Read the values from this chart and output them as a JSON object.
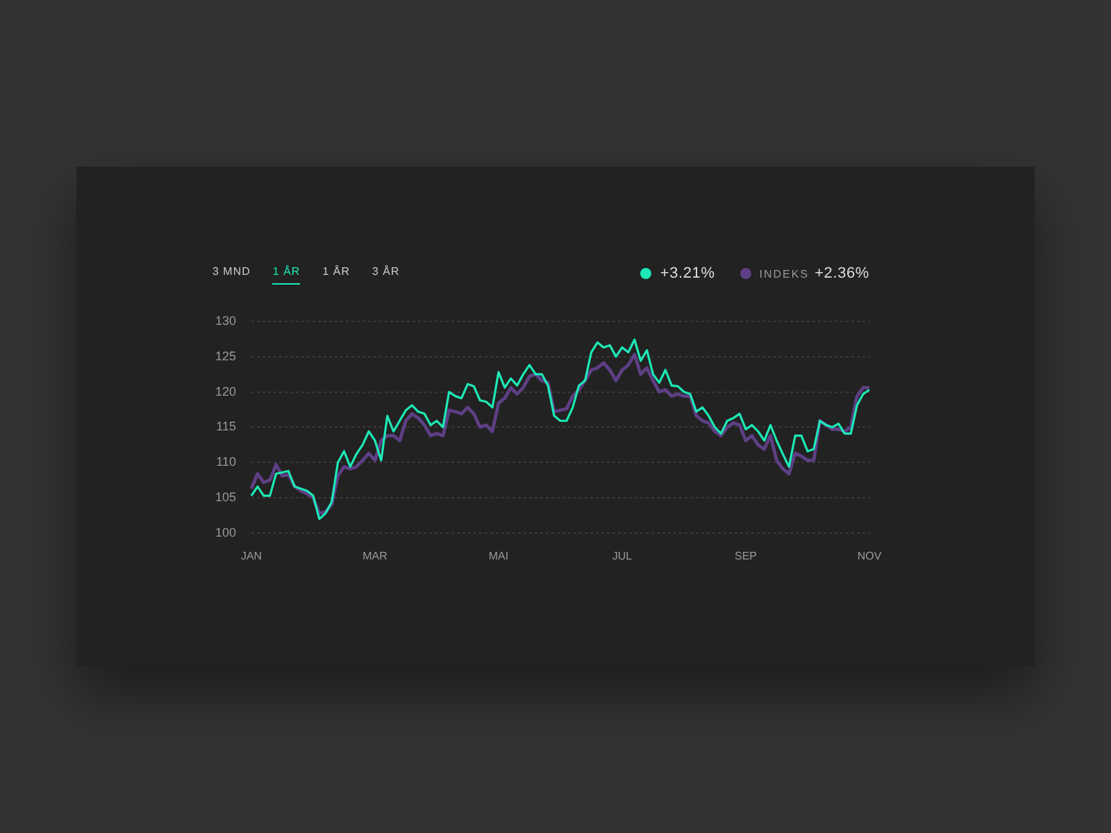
{
  "chart_data": {
    "type": "line",
    "categories": [
      "JAN",
      null,
      null,
      null,
      null,
      null,
      null,
      null,
      null,
      null,
      null,
      null,
      null,
      null,
      null,
      null,
      null,
      null,
      null,
      null,
      "MAR",
      null,
      null,
      null,
      null,
      null,
      null,
      null,
      null,
      null,
      null,
      null,
      null,
      null,
      null,
      null,
      null,
      null,
      null,
      null,
      "MAI",
      null,
      null,
      null,
      null,
      null,
      null,
      null,
      null,
      null,
      null,
      null,
      null,
      null,
      null,
      null,
      null,
      null,
      null,
      null,
      "JUL",
      null,
      null,
      null,
      null,
      null,
      null,
      null,
      null,
      null,
      null,
      null,
      null,
      null,
      null,
      null,
      null,
      null,
      null,
      null,
      "SEP",
      null,
      null,
      null,
      null,
      null,
      null,
      null,
      null,
      null,
      null,
      null,
      null,
      null,
      null,
      null,
      null,
      null,
      null,
      null,
      "NOV"
    ],
    "series": [
      {
        "name": "INDEKS",
        "color": "#5e3f85",
        "values": [
          106.3,
          108.4,
          107.2,
          107.5,
          109.7,
          108.1,
          108.3,
          106.6,
          106,
          105.6,
          105,
          102.8,
          103,
          104.1,
          108.1,
          109.4,
          109.1,
          109.4,
          110.3,
          111.3,
          110.3,
          113.1,
          113.8,
          113.8,
          113.1,
          115.9,
          116.9,
          116.3,
          115.3,
          113.8,
          114.1,
          113.8,
          117.4,
          117.2,
          116.9,
          117.8,
          116.9,
          115,
          115.3,
          114.4,
          118.4,
          119.1,
          120.6,
          119.7,
          120.6,
          122.2,
          122.5,
          121.6,
          121.3,
          117.2,
          117.4,
          117.6,
          119.4,
          120.3,
          121.6,
          123.1,
          123.4,
          124.1,
          123.1,
          121.6,
          123.1,
          123.8,
          125.3,
          122.5,
          123.4,
          121.6,
          120,
          120.3,
          119.4,
          119.7,
          119.4,
          119.4,
          116.6,
          115.9,
          115.6,
          114.4,
          113.8,
          115,
          115.6,
          115.3,
          113.1,
          113.8,
          112.5,
          111.9,
          113.8,
          110.3,
          109.1,
          108.4,
          111.3,
          110.9,
          110.3,
          110.3,
          115.9,
          115.3,
          114.7,
          114.7,
          114.4,
          115,
          119.4,
          120.6,
          120.6
        ]
      },
      {
        "color": "#1de9b6",
        "values": [
          105.3,
          106.6,
          105.3,
          105.3,
          108.4,
          108.6,
          108.8,
          106.6,
          106.3,
          106,
          105.3,
          102,
          102.8,
          104.4,
          110,
          111.6,
          109.4,
          111.2,
          112.5,
          114.4,
          113.1,
          110.3,
          116.6,
          114.4,
          115.9,
          117.4,
          118.1,
          117.2,
          116.9,
          115.3,
          115.9,
          115,
          120,
          119.4,
          119.1,
          121.1,
          120.8,
          118.8,
          118.6,
          117.8,
          122.8,
          120.6,
          121.9,
          120.9,
          122.5,
          123.8,
          122.5,
          122.5,
          120.9,
          116.6,
          115.9,
          115.9,
          117.8,
          120.9,
          121.6,
          125.6,
          127,
          126.3,
          126.6,
          125,
          126.3,
          125.6,
          127.4,
          124.4,
          125.9,
          122.5,
          121.3,
          123.1,
          120.9,
          120.8,
          120,
          119.7,
          117.2,
          117.8,
          116.6,
          115,
          114.1,
          115.9,
          116.3,
          116.9,
          114.7,
          115.3,
          114.4,
          113.1,
          115.3,
          113.1,
          111.2,
          109.4,
          113.8,
          113.8,
          111.6,
          111.9,
          115.9,
          115.3,
          115,
          115.5,
          114.1,
          114.1,
          118.1,
          119.7,
          120.3
        ]
      }
    ],
    "ylim": [
      100,
      130
    ],
    "yticks": [
      100,
      105,
      110,
      115,
      120,
      125,
      130
    ],
    "grid": "y",
    "legend": "top right",
    "marker": "none",
    "line_style": "solid",
    "annotations": [
      "3 MND",
      "1 ÅR",
      "1 ÅR",
      "3 ÅR",
      "+3.21%",
      "+2.36%"
    ]
  }
}
